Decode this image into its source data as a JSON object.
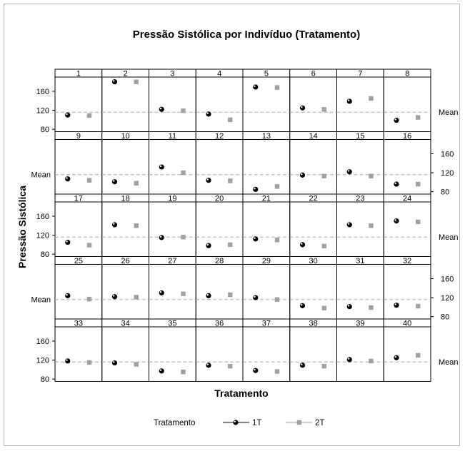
{
  "chart_data": {
    "type": "scatter",
    "title": "Pressão Sistólica por Indivíduo (Tratamento)",
    "xlabel": "Tratamento",
    "ylabel": "Pressão Sistólica",
    "ylim": [
      75,
      190
    ],
    "yticks": [
      "80",
      "120",
      "160"
    ],
    "mean_label": "Mean",
    "mean": 116,
    "grid": false,
    "legend_placement": "bottom",
    "legend_title": "Tratamento",
    "categories": [
      "1T",
      "2T"
    ],
    "colors": {
      "1T": "#000000",
      "2T": "#a0a0a0",
      "mean_line": "#a8a8a8"
    },
    "panels": [
      {
        "label": "1",
        "v1": 110,
        "v2": 109
      },
      {
        "label": "2",
        "v1": 180,
        "v2": 180
      },
      {
        "label": "3",
        "v1": 122,
        "v2": 119
      },
      {
        "label": "4",
        "v1": 112,
        "v2": 100
      },
      {
        "label": "5",
        "v1": 169,
        "v2": 168
      },
      {
        "label": "6",
        "v1": 125,
        "v2": 122
      },
      {
        "label": "7",
        "v1": 139,
        "v2": 145
      },
      {
        "label": "8",
        "v1": 99,
        "v2": 105
      },
      {
        "label": "9",
        "v1": 107,
        "v2": 104
      },
      {
        "label": "10",
        "v1": 101,
        "v2": 98
      },
      {
        "label": "11",
        "v1": 132,
        "v2": 120
      },
      {
        "label": "12",
        "v1": 104,
        "v2": 103
      },
      {
        "label": "13",
        "v1": 85,
        "v2": 91
      },
      {
        "label": "14",
        "v1": 115,
        "v2": 113
      },
      {
        "label": "15",
        "v1": 122,
        "v2": 113
      },
      {
        "label": "16",
        "v1": 96,
        "v2": 96
      },
      {
        "label": "17",
        "v1": 105,
        "v2": 99
      },
      {
        "label": "18",
        "v1": 142,
        "v2": 140
      },
      {
        "label": "19",
        "v1": 115,
        "v2": 116
      },
      {
        "label": "20",
        "v1": 98,
        "v2": 100
      },
      {
        "label": "21",
        "v1": 112,
        "v2": 110
      },
      {
        "label": "22",
        "v1": 100,
        "v2": 97
      },
      {
        "label": "23",
        "v1": 142,
        "v2": 140
      },
      {
        "label": "24",
        "v1": 150,
        "v2": 148
      },
      {
        "label": "25",
        "v1": 124,
        "v2": 117
      },
      {
        "label": "26",
        "v1": 122,
        "v2": 121
      },
      {
        "label": "27",
        "v1": 130,
        "v2": 128
      },
      {
        "label": "28",
        "v1": 124,
        "v2": 126
      },
      {
        "label": "29",
        "v1": 120,
        "v2": 116
      },
      {
        "label": "30",
        "v1": 103,
        "v2": 98
      },
      {
        "label": "31",
        "v1": 101,
        "v2": 99
      },
      {
        "label": "32",
        "v1": 104,
        "v2": 102
      },
      {
        "label": "33",
        "v1": 118,
        "v2": 115
      },
      {
        "label": "34",
        "v1": 114,
        "v2": 111
      },
      {
        "label": "35",
        "v1": 97,
        "v2": 95
      },
      {
        "label": "36",
        "v1": 109,
        "v2": 107
      },
      {
        "label": "37",
        "v1": 98,
        "v2": 96
      },
      {
        "label": "38",
        "v1": 109,
        "v2": 107
      },
      {
        "label": "39",
        "v1": 121,
        "v2": 118
      },
      {
        "label": "40",
        "v1": 125,
        "v2": 130
      }
    ]
  }
}
